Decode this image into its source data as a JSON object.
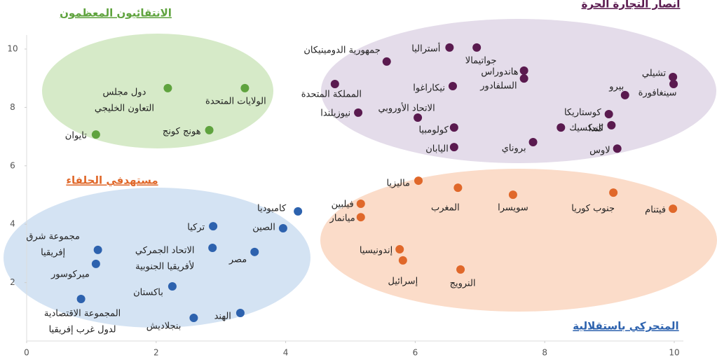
{
  "chart_data": {
    "type": "scatter",
    "xlim": [
      0,
      10
    ],
    "ylim": [
      0,
      10
    ],
    "xticks": [
      0,
      2,
      4,
      6,
      8,
      10
    ],
    "yticks": [
      2,
      4,
      6,
      8,
      10
    ],
    "series": [
      {
        "name": "الانتقائيون المعظمون",
        "color": "#5fa33e",
        "area_color": "#d6eac8",
        "x": [
          2.18,
          3.37,
          2.82,
          1.07
        ],
        "values": [
          8.66,
          8.66,
          7.22,
          7.07
        ],
        "labels": [
          [
            "دول مجلس",
            "التعاون الخليجي"
          ],
          [
            "الولايات المتحدة"
          ],
          [
            "هونج كونج"
          ],
          [
            "تايوان"
          ]
        ]
      },
      {
        "name": "أنصار التجارة الحرة",
        "color": "#5a1a4f",
        "area_color": "#e4dcea",
        "x": [
          6.53,
          5.56,
          6.95,
          7.68,
          7.68,
          6.58,
          4.76,
          6.04,
          5.12,
          6.6,
          6.6,
          8.99,
          8.25,
          9.03,
          7.82,
          9.12,
          9.24,
          9.98,
          9.99
        ],
        "values": [
          10.05,
          9.57,
          10.05,
          9.26,
          8.99,
          8.73,
          8.8,
          7.65,
          7.82,
          7.31,
          6.64,
          7.77,
          7.31,
          7.39,
          6.81,
          6.59,
          8.42,
          9.04,
          8.8
        ],
        "labels": [
          [
            "أستراليا"
          ],
          [
            "جمهورية الدومينيكان"
          ],
          [
            "جواتيمالا"
          ],
          [
            "هاندوراس"
          ],
          [
            "السلفادور"
          ],
          [
            "نيكاراغوا"
          ],
          [
            "المملكة المتحدة"
          ],
          [
            "الاتحاد الأوروبي"
          ],
          [
            "نيوزيلندا"
          ],
          [
            "كولومبيا"
          ],
          [
            "اليابان"
          ],
          [
            "كوستاريكا"
          ],
          [
            "المكسيك"
          ],
          [
            "كندا"
          ],
          [
            "بروناي"
          ],
          [
            "لاوس"
          ],
          [
            "بيرو"
          ],
          [
            "تشيلي"
          ],
          [
            "سينغافورة"
          ]
        ]
      },
      {
        "name": "مستهدفي الحلفاء",
        "color": "#e0682a",
        "area_color": "#fbdcc9",
        "x": [
          6.05,
          5.16,
          5.16,
          6.66,
          7.51,
          9.06,
          9.98,
          5.76,
          5.81,
          6.7
        ],
        "values": [
          5.49,
          4.7,
          4.24,
          5.25,
          5.01,
          5.08,
          4.53,
          3.14,
          2.76,
          2.45
        ],
        "labels": [
          [
            "ماليزيا"
          ],
          [
            "فيلبين"
          ],
          [
            "ميانمار"
          ],
          [
            "المغرب"
          ],
          [
            "سويسرا"
          ],
          [
            "جنوب كوريا"
          ],
          [
            "فيتنام"
          ],
          [
            "إندونيسيا"
          ],
          [
            "إسرائيل"
          ],
          [
            "النرويج"
          ]
        ]
      },
      {
        "name": "المتحركي باستقلالية",
        "color": "#2d62ae",
        "area_color": "#d4e3f3",
        "x": [
          4.19,
          3.96,
          2.88,
          2.87,
          3.52,
          1.1,
          1.07,
          2.25,
          0.84,
          3.3,
          2.58
        ],
        "values": [
          4.44,
          3.86,
          3.93,
          3.19,
          3.05,
          3.12,
          2.64,
          1.87,
          1.44,
          0.96,
          0.79
        ],
        "labels": [
          [
            "كامبوديا"
          ],
          [
            "الصين"
          ],
          [
            "تركيا"
          ],
          [
            "الاتحاد الجمركي",
            "لأفريقيا الجنوبية"
          ],
          [
            "مصر"
          ],
          [
            "مجموعة شرق",
            "إفريقيا"
          ],
          [
            "ميركوسور"
          ],
          [
            "باكستان"
          ],
          [
            "المجموعة الاقتصادية",
            "لدول غرب إفريقيا"
          ],
          [
            "الهند"
          ],
          [
            "بنجلاديش"
          ]
        ]
      }
    ]
  }
}
